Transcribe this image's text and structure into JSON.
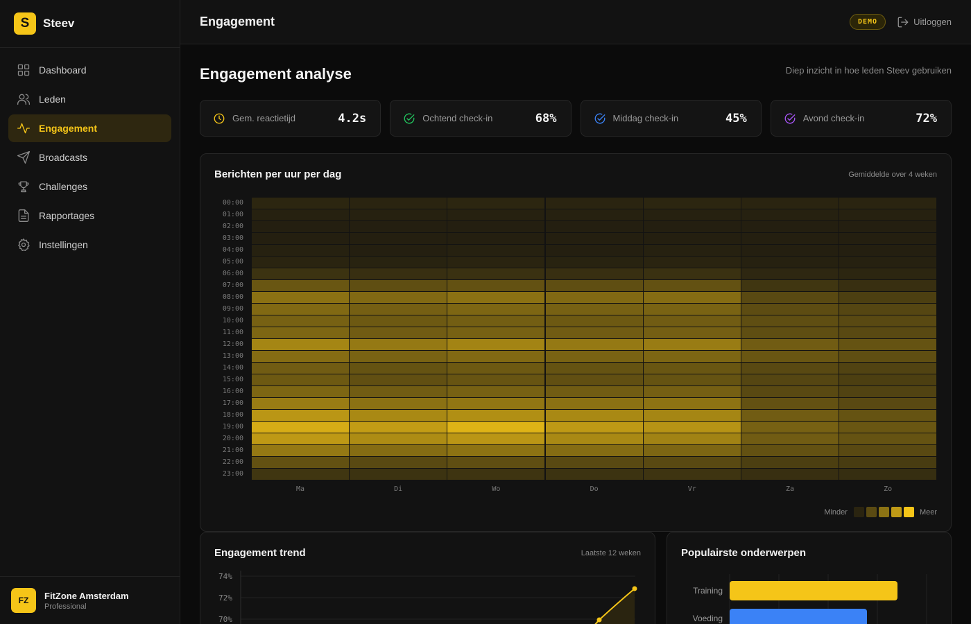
{
  "brand": {
    "logo_letter": "S",
    "name": "Steev"
  },
  "nav": [
    {
      "label": "Dashboard",
      "icon": "grid-icon",
      "active": false
    },
    {
      "label": "Leden",
      "icon": "users-icon",
      "active": false
    },
    {
      "label": "Engagement",
      "icon": "activity-icon",
      "active": true
    },
    {
      "label": "Broadcasts",
      "icon": "send-icon",
      "active": false
    },
    {
      "label": "Challenges",
      "icon": "trophy-icon",
      "active": false
    },
    {
      "label": "Rapportages",
      "icon": "file-text-icon",
      "active": false
    },
    {
      "label": "Instellingen",
      "icon": "settings-icon",
      "active": false
    }
  ],
  "org": {
    "initials": "FZ",
    "name": "FitZone Amsterdam",
    "plan": "Professional"
  },
  "topbar": {
    "title": "Engagement",
    "badge": "DEMO",
    "logout_label": "Uitloggen"
  },
  "page": {
    "title": "Engagement analyse",
    "subtitle": "Diep inzicht in hoe leden Steev gebruiken"
  },
  "stats": [
    {
      "label": "Gem. reactietijd",
      "value": "4.2s",
      "icon": "clock-icon",
      "color": "#f5c518"
    },
    {
      "label": "Ochtend check-in",
      "value": "68%",
      "icon": "check-circle-icon",
      "color": "#22c55e"
    },
    {
      "label": "Middag check-in",
      "value": "45%",
      "icon": "check-circle-icon",
      "color": "#3b82f6"
    },
    {
      "label": "Avond check-in",
      "value": "72%",
      "icon": "check-circle-icon",
      "color": "#a855f7"
    }
  ],
  "heatmap": {
    "title": "Berichten per uur per dag",
    "meta": "Gemiddelde over 4 weken",
    "legend_min": "Minder",
    "legend_max": "Meer",
    "hours": [
      "00:00",
      "01:00",
      "02:00",
      "03:00",
      "04:00",
      "05:00",
      "06:00",
      "07:00",
      "08:00",
      "09:00",
      "10:00",
      "11:00",
      "12:00",
      "13:00",
      "14:00",
      "15:00",
      "16:00",
      "17:00",
      "18:00",
      "19:00",
      "20:00",
      "21:00",
      "22:00",
      "23:00"
    ],
    "days": [
      "Ma",
      "Di",
      "Wo",
      "Do",
      "Vr",
      "Za",
      "Zo"
    ],
    "intensity": [
      [
        0.08,
        0.07,
        0.08,
        0.07,
        0.08,
        0.07,
        0.07
      ],
      [
        0.05,
        0.05,
        0.05,
        0.05,
        0.05,
        0.05,
        0.05
      ],
      [
        0.04,
        0.04,
        0.04,
        0.04,
        0.04,
        0.04,
        0.04
      ],
      [
        0.04,
        0.04,
        0.04,
        0.04,
        0.04,
        0.04,
        0.04
      ],
      [
        0.05,
        0.04,
        0.05,
        0.04,
        0.05,
        0.04,
        0.04
      ],
      [
        0.07,
        0.06,
        0.07,
        0.06,
        0.07,
        0.05,
        0.05
      ],
      [
        0.16,
        0.14,
        0.15,
        0.14,
        0.15,
        0.09,
        0.08
      ],
      [
        0.38,
        0.33,
        0.35,
        0.33,
        0.35,
        0.18,
        0.14
      ],
      [
        0.55,
        0.5,
        0.55,
        0.5,
        0.52,
        0.3,
        0.24
      ],
      [
        0.5,
        0.44,
        0.48,
        0.45,
        0.46,
        0.32,
        0.28
      ],
      [
        0.45,
        0.4,
        0.43,
        0.4,
        0.42,
        0.33,
        0.3
      ],
      [
        0.48,
        0.42,
        0.45,
        0.42,
        0.44,
        0.33,
        0.3
      ],
      [
        0.68,
        0.6,
        0.67,
        0.6,
        0.62,
        0.42,
        0.36
      ],
      [
        0.52,
        0.46,
        0.5,
        0.46,
        0.48,
        0.38,
        0.33
      ],
      [
        0.42,
        0.36,
        0.4,
        0.36,
        0.38,
        0.3,
        0.26
      ],
      [
        0.4,
        0.34,
        0.37,
        0.34,
        0.36,
        0.28,
        0.24
      ],
      [
        0.48,
        0.42,
        0.45,
        0.42,
        0.44,
        0.3,
        0.26
      ],
      [
        0.62,
        0.55,
        0.58,
        0.55,
        0.56,
        0.35,
        0.3
      ],
      [
        0.78,
        0.7,
        0.74,
        0.7,
        0.68,
        0.42,
        0.36
      ],
      [
        0.92,
        0.82,
        0.96,
        0.8,
        0.76,
        0.45,
        0.38
      ],
      [
        0.8,
        0.72,
        0.78,
        0.7,
        0.66,
        0.42,
        0.36
      ],
      [
        0.6,
        0.52,
        0.56,
        0.52,
        0.48,
        0.35,
        0.3
      ],
      [
        0.35,
        0.3,
        0.33,
        0.3,
        0.3,
        0.24,
        0.22
      ],
      [
        0.18,
        0.16,
        0.17,
        0.16,
        0.17,
        0.14,
        0.13
      ]
    ]
  },
  "trend": {
    "title": "Engagement trend",
    "meta": "Laatste 12 weken",
    "chart_data": {
      "type": "area",
      "y_ticks": [
        "74%",
        "72%",
        "70%"
      ],
      "visible_points": [
        {
          "week": 11,
          "value": 70
        },
        {
          "week": 12,
          "value": 73
        }
      ]
    }
  },
  "topics": {
    "title": "Populairste onderwerpen",
    "chart_data": {
      "type": "bar",
      "categories": [
        "Training",
        "Voeding"
      ],
      "values": [
        100,
        82
      ],
      "colors": [
        "#f5c518",
        "#3b82f6"
      ]
    }
  }
}
